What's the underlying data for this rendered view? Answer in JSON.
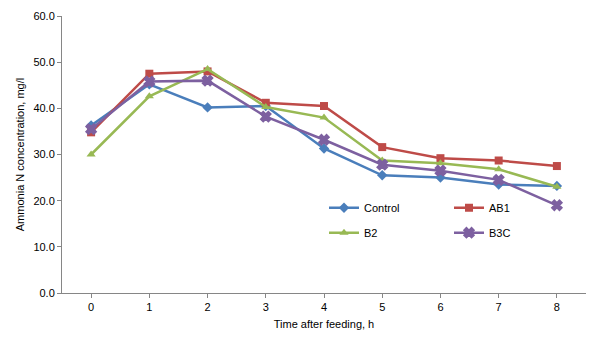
{
  "chart_data": {
    "type": "line",
    "x_label": "Time after feeding, h",
    "y_label": "Ammonia N concentration, mg/l",
    "x": [
      0,
      1,
      2,
      3,
      4,
      5,
      6,
      7,
      8
    ],
    "xlim": [
      -0.5,
      8.5
    ],
    "xticks": [
      0,
      1,
      2,
      3,
      4,
      5,
      6,
      7,
      8
    ],
    "ylim": [
      0,
      60
    ],
    "yticks": [
      {
        "value": 0,
        "label": "0.0"
      },
      {
        "value": 10,
        "label": "10.0"
      },
      {
        "value": 20,
        "label": "20.0"
      },
      {
        "value": 30,
        "label": "30.0"
      },
      {
        "value": 40,
        "label": "40.0"
      },
      {
        "value": 50,
        "label": "50.0"
      },
      {
        "value": 60,
        "label": "60.0"
      }
    ],
    "grid": false,
    "legend": "lower right",
    "series": [
      {
        "name": "Control",
        "color": "#4a7ebb",
        "marker": "diamond",
        "line_style": "solid",
        "values": [
          36.3,
          45.2,
          40.2,
          40.5,
          31.3,
          25.5,
          25.0,
          23.5,
          23.2
        ]
      },
      {
        "name": "AB1",
        "color": "#be4b48",
        "marker": "square",
        "line_style": "solid",
        "values": [
          34.8,
          47.5,
          48.0,
          41.2,
          40.5,
          31.6,
          29.2,
          28.7,
          27.5
        ]
      },
      {
        "name": "B2",
        "color": "#98b954",
        "marker": "triangle",
        "line_style": "solid",
        "values": [
          30.0,
          42.6,
          48.5,
          40.3,
          38.0,
          28.7,
          28.1,
          26.8,
          23.0
        ]
      },
      {
        "name": "B3C",
        "color": "#7d60a0",
        "marker": "x",
        "line_style": "solid",
        "values": [
          35.5,
          45.8,
          46.0,
          38.2,
          33.2,
          27.8,
          26.5,
          24.5,
          19.0
        ]
      }
    ]
  }
}
